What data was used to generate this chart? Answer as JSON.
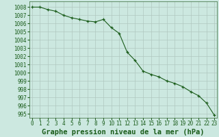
{
  "x": [
    0,
    1,
    2,
    3,
    4,
    5,
    6,
    7,
    8,
    9,
    10,
    11,
    12,
    13,
    14,
    15,
    16,
    17,
    18,
    19,
    20,
    21,
    22,
    23
  ],
  "y": [
    1008.0,
    1008.0,
    1007.7,
    1007.5,
    1007.0,
    1006.7,
    1006.5,
    1006.3,
    1006.2,
    1006.5,
    1005.5,
    1004.8,
    1002.5,
    1001.5,
    1000.2,
    999.8,
    999.5,
    999.0,
    998.7,
    998.3,
    997.7,
    997.2,
    996.3,
    994.8
  ],
  "xlim": [
    -0.3,
    23.3
  ],
  "ylim": [
    994.5,
    1008.7
  ],
  "yticks": [
    995,
    996,
    997,
    998,
    999,
    1000,
    1001,
    1002,
    1003,
    1004,
    1005,
    1006,
    1007,
    1008
  ],
  "xticks": [
    0,
    1,
    2,
    3,
    4,
    5,
    6,
    7,
    8,
    9,
    10,
    11,
    12,
    13,
    14,
    15,
    16,
    17,
    18,
    19,
    20,
    21,
    22,
    23
  ],
  "line_color": "#1a5c1a",
  "marker": "+",
  "bg_color": "#cce8e0",
  "grid_color": "#b0c8c0",
  "xlabel": "Graphe pression niveau de la mer (hPa)",
  "xlabel_fontsize": 7.5,
  "tick_fontsize": 5.5,
  "fig_bg": "#cce8e0",
  "spine_color": "#336633"
}
